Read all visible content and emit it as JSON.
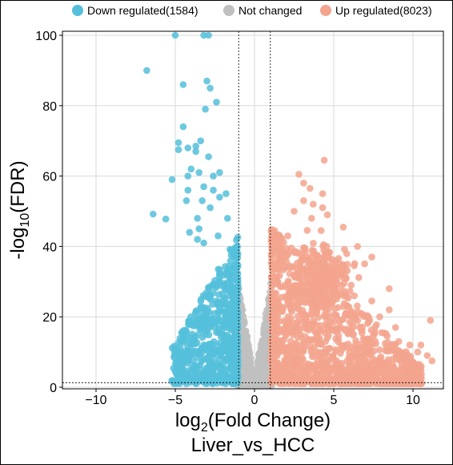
{
  "chart_data": {
    "type": "scatter",
    "title": "",
    "xlabel_base": "log",
    "xlabel_sub": "2",
    "xlabel_rest": "(Fold Change)",
    "ylabel_base": "-log",
    "ylabel_sub": "10",
    "ylabel_rest": "(FDR)",
    "subtitle": "Liver_vs_HCC",
    "xlim": [
      -12,
      12
    ],
    "ylim": [
      0,
      100
    ],
    "xticks": [
      -10,
      -5,
      0,
      5,
      10
    ],
    "yticks": [
      0,
      20,
      40,
      60,
      80,
      100
    ],
    "grid": true,
    "legend_position": "top",
    "thresholds": {
      "log2fc": [
        -1,
        1
      ],
      "neg_log10_fdr": 1.3
    },
    "series": [
      {
        "name": "Down regulated(1584)",
        "color": "#55bfdb",
        "count": 1584
      },
      {
        "name": "Not changed",
        "color": "#c0c0c0"
      },
      {
        "name": "Up regulated(8023)",
        "color": "#f3a48e",
        "count": 8023
      }
    ],
    "down_points": [
      [
        -5,
        100
      ],
      [
        -3.2,
        100
      ],
      [
        -2.9,
        100
      ],
      [
        -6.8,
        90
      ],
      [
        -4.5,
        86
      ],
      [
        -3,
        87
      ],
      [
        -2.8,
        85
      ],
      [
        -3.1,
        79
      ],
      [
        -2.4,
        81
      ],
      [
        -4.5,
        74
      ],
      [
        -4.8,
        69.5
      ],
      [
        -4.8,
        67.5
      ],
      [
        -4.2,
        68
      ],
      [
        -3.7,
        68.5
      ],
      [
        -3.7,
        67
      ],
      [
        -3.4,
        70
      ],
      [
        -2.9,
        65.5
      ],
      [
        -2.6,
        60
      ],
      [
        -2.2,
        61
      ],
      [
        -3.5,
        61
      ],
      [
        -4,
        62
      ],
      [
        -4.2,
        60
      ],
      [
        -5.2,
        59
      ],
      [
        -4.2,
        56
      ],
      [
        -3.2,
        57
      ],
      [
        -2.6,
        56
      ],
      [
        -1.8,
        55
      ],
      [
        -4.3,
        53
      ],
      [
        -3.3,
        53
      ],
      [
        -2.2,
        54
      ],
      [
        -6.4,
        49.2
      ],
      [
        -5.6,
        47.8
      ],
      [
        -3.6,
        48
      ],
      [
        -2.8,
        51
      ],
      [
        -1.7,
        48
      ],
      [
        -4.1,
        44
      ],
      [
        -3.5,
        45
      ],
      [
        -3.6,
        42
      ],
      [
        -2.3,
        43
      ],
      [
        -3.2,
        41
      ]
    ],
    "up_points": [
      [
        4.4,
        64.5
      ],
      [
        2.8,
        60.5
      ],
      [
        3.1,
        58
      ],
      [
        3.5,
        56.5
      ],
      [
        4.3,
        55
      ],
      [
        3.1,
        53
      ],
      [
        3.7,
        52
      ],
      [
        4.3,
        51
      ],
      [
        2.5,
        50
      ],
      [
        4.6,
        49
      ],
      [
        3.6,
        48
      ],
      [
        5.6,
        45.5
      ],
      [
        4.2,
        44.5
      ],
      [
        2.1,
        43
      ],
      [
        6.5,
        40
      ],
      [
        7.4,
        37
      ],
      [
        5.7,
        33.5
      ],
      [
        6.1,
        29
      ],
      [
        6.3,
        26
      ],
      [
        8.5,
        28
      ],
      [
        7.4,
        24.5
      ],
      [
        7.9,
        20
      ],
      [
        8.9,
        17
      ],
      [
        8.5,
        22
      ],
      [
        9.1,
        13
      ],
      [
        9.8,
        12
      ],
      [
        10.5,
        12
      ],
      [
        11.1,
        19
      ],
      [
        10.3,
        10
      ],
      [
        10.9,
        9
      ],
      [
        11.2,
        7.5
      ],
      [
        10,
        6
      ],
      [
        9.5,
        7
      ]
    ]
  }
}
